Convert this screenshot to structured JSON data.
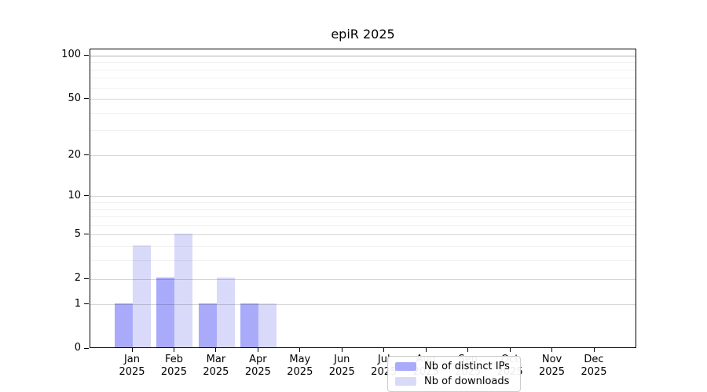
{
  "chart_data": {
    "type": "bar",
    "title": "epiR 2025",
    "x_year": "2025",
    "categories": [
      "Jan",
      "Feb",
      "Mar",
      "Apr",
      "May",
      "Jun",
      "Jul",
      "Aug",
      "Sep",
      "Oct",
      "Nov",
      "Dec"
    ],
    "series": [
      {
        "name": "Nb of distinct IPs",
        "color": "#a9abfa",
        "values": [
          1,
          2,
          1,
          1,
          0,
          0,
          0,
          0,
          0,
          0,
          0,
          0
        ]
      },
      {
        "name": "Nb of downloads",
        "color": "#d9dafa",
        "values": [
          4,
          5,
          2,
          1,
          0,
          0,
          0,
          0,
          0,
          0,
          0,
          0
        ]
      }
    ],
    "yscale": "log1p",
    "ylim": [
      0,
      111
    ],
    "y_major_ticks": [
      0,
      1,
      2,
      5,
      10,
      20,
      50,
      100
    ],
    "y_minor_ticks": [
      3,
      4,
      6,
      7,
      8,
      9,
      30,
      40,
      60,
      70,
      80,
      90
    ],
    "grid": "both",
    "legend_position": "inside-bottom-center"
  }
}
